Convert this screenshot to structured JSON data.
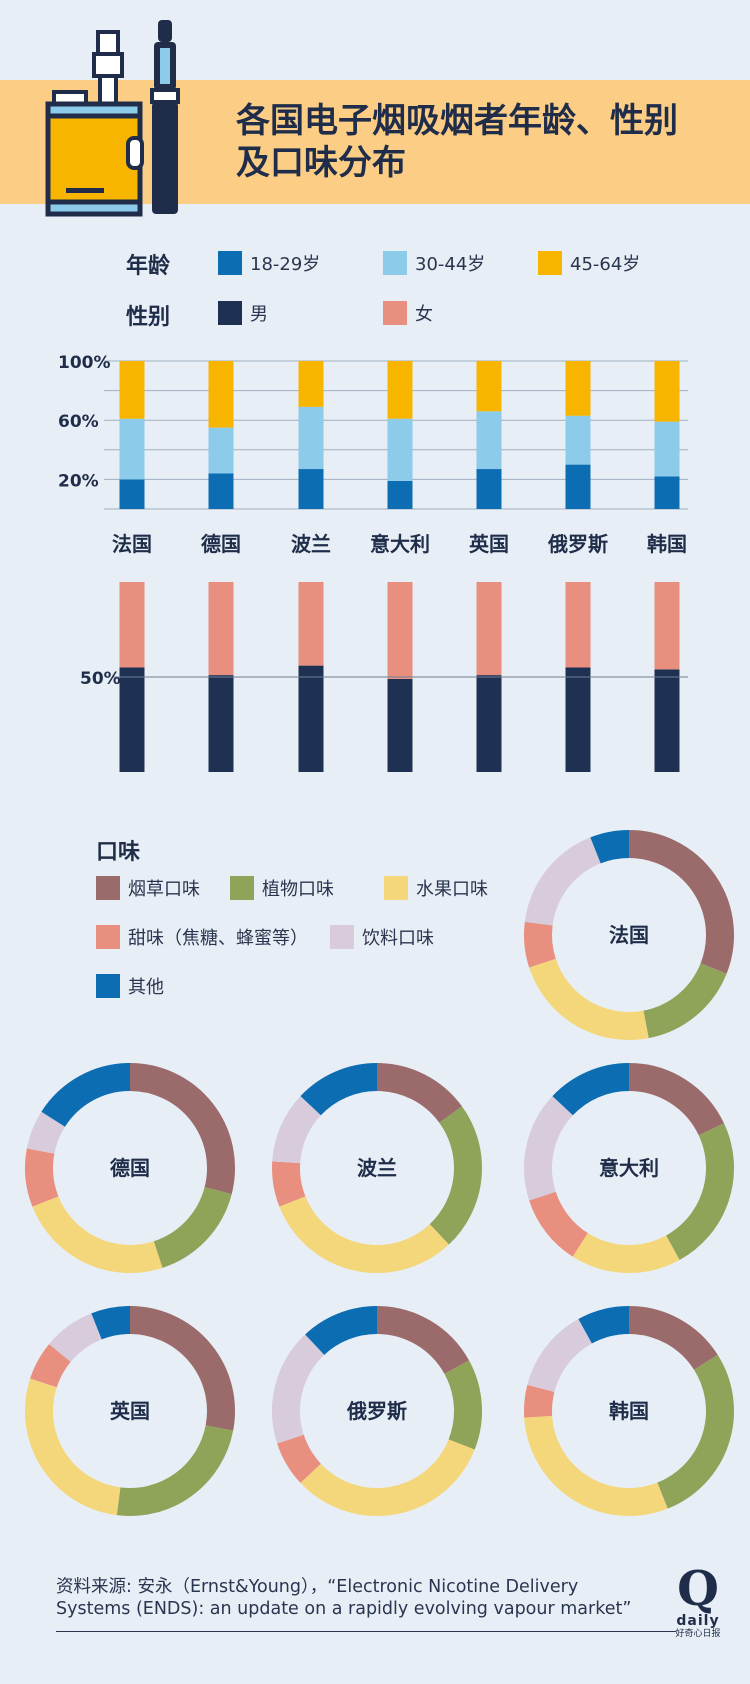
{
  "title": "各国电子烟吸烟者年龄、性别及口味分布",
  "title_line1": "各国电子烟吸烟者年龄、性别",
  "title_line2": "及口味分布",
  "legend": {
    "age_label": "年龄",
    "gender_label": "性别",
    "taste_label": "口味",
    "age_items": [
      {
        "label": "18-29岁",
        "color": "#0c6db2"
      },
      {
        "label": "30-44岁",
        "color": "#8dcbea"
      },
      {
        "label": "45-64岁",
        "color": "#f7b500"
      }
    ],
    "gender_items": [
      {
        "label": "男",
        "color": "#1f3152"
      },
      {
        "label": "女",
        "color": "#e88f7f"
      }
    ],
    "taste_items": [
      {
        "label": "烟草口味",
        "color": "#9a6b6a"
      },
      {
        "label": "植物口味",
        "color": "#8fa359"
      },
      {
        "label": "水果口味",
        "color": "#f4d77a"
      },
      {
        "label": "甜味（焦糖、蜂蜜等）",
        "color": "#e88f7f"
      },
      {
        "label": "饮料口味",
        "color": "#d7cbdc"
      },
      {
        "label": "其他",
        "color": "#0c6db2"
      }
    ]
  },
  "chart_data": [
    {
      "type": "bar",
      "stacked": true,
      "categories": [
        "法国",
        "德国",
        "波兰",
        "意大利",
        "英国",
        "俄罗斯",
        "韩国"
      ],
      "series": [
        {
          "name": "18-29岁",
          "values": [
            20,
            24,
            27,
            19,
            27,
            30,
            22
          ]
        },
        {
          "name": "30-44岁",
          "values": [
            41,
            31,
            42,
            42,
            39,
            33,
            37
          ]
        },
        {
          "name": "45-64岁",
          "values": [
            39,
            45,
            31,
            39,
            34,
            37,
            41
          ]
        }
      ],
      "ytick_labels": [
        "20%",
        "60%",
        "100%"
      ],
      "ylim": [
        0,
        100
      ],
      "grid": true
    },
    {
      "type": "bar",
      "stacked": true,
      "categories": [
        "法国",
        "德国",
        "波兰",
        "意大利",
        "英国",
        "俄罗斯",
        "韩国"
      ],
      "series": [
        {
          "name": "男",
          "values": [
            55,
            51,
            56,
            49,
            51,
            55,
            54
          ]
        },
        {
          "name": "女",
          "values": [
            45,
            49,
            44,
            51,
            49,
            45,
            46
          ]
        }
      ],
      "ytick_labels": [
        "50%"
      ],
      "ylim": [
        0,
        100
      ],
      "grid": true
    },
    {
      "type": "pie",
      "donut": true,
      "series_names": [
        "烟草口味",
        "植物口味",
        "水果口味",
        "甜味（焦糖、蜂蜜等）",
        "饮料口味",
        "其他"
      ],
      "charts": [
        {
          "label": "法国",
          "values": [
            31,
            16,
            23,
            7,
            17,
            6
          ]
        },
        {
          "label": "德国",
          "values": [
            29,
            16,
            24,
            9,
            6,
            16
          ]
        },
        {
          "label": "波兰",
          "values": [
            15,
            23,
            31,
            7,
            11,
            13
          ]
        },
        {
          "label": "意大利",
          "values": [
            18,
            24,
            17,
            11,
            17,
            13
          ]
        },
        {
          "label": "英国",
          "values": [
            28,
            24,
            28,
            6,
            8,
            6
          ]
        },
        {
          "label": "俄罗斯",
          "values": [
            17,
            14,
            32,
            7,
            18,
            12
          ]
        },
        {
          "label": "韩国",
          "values": [
            16,
            28,
            30,
            5,
            13,
            8
          ]
        }
      ]
    }
  ],
  "source_line1": "资料来源: 安永（Ernst&Young），“Electronic Nicotine Delivery",
  "source_line2": "Systems (ENDS): an update on a rapidly evolving vapour market”",
  "logo": {
    "mark": "Q",
    "word": "daily",
    "sub": "好奇心日报"
  }
}
